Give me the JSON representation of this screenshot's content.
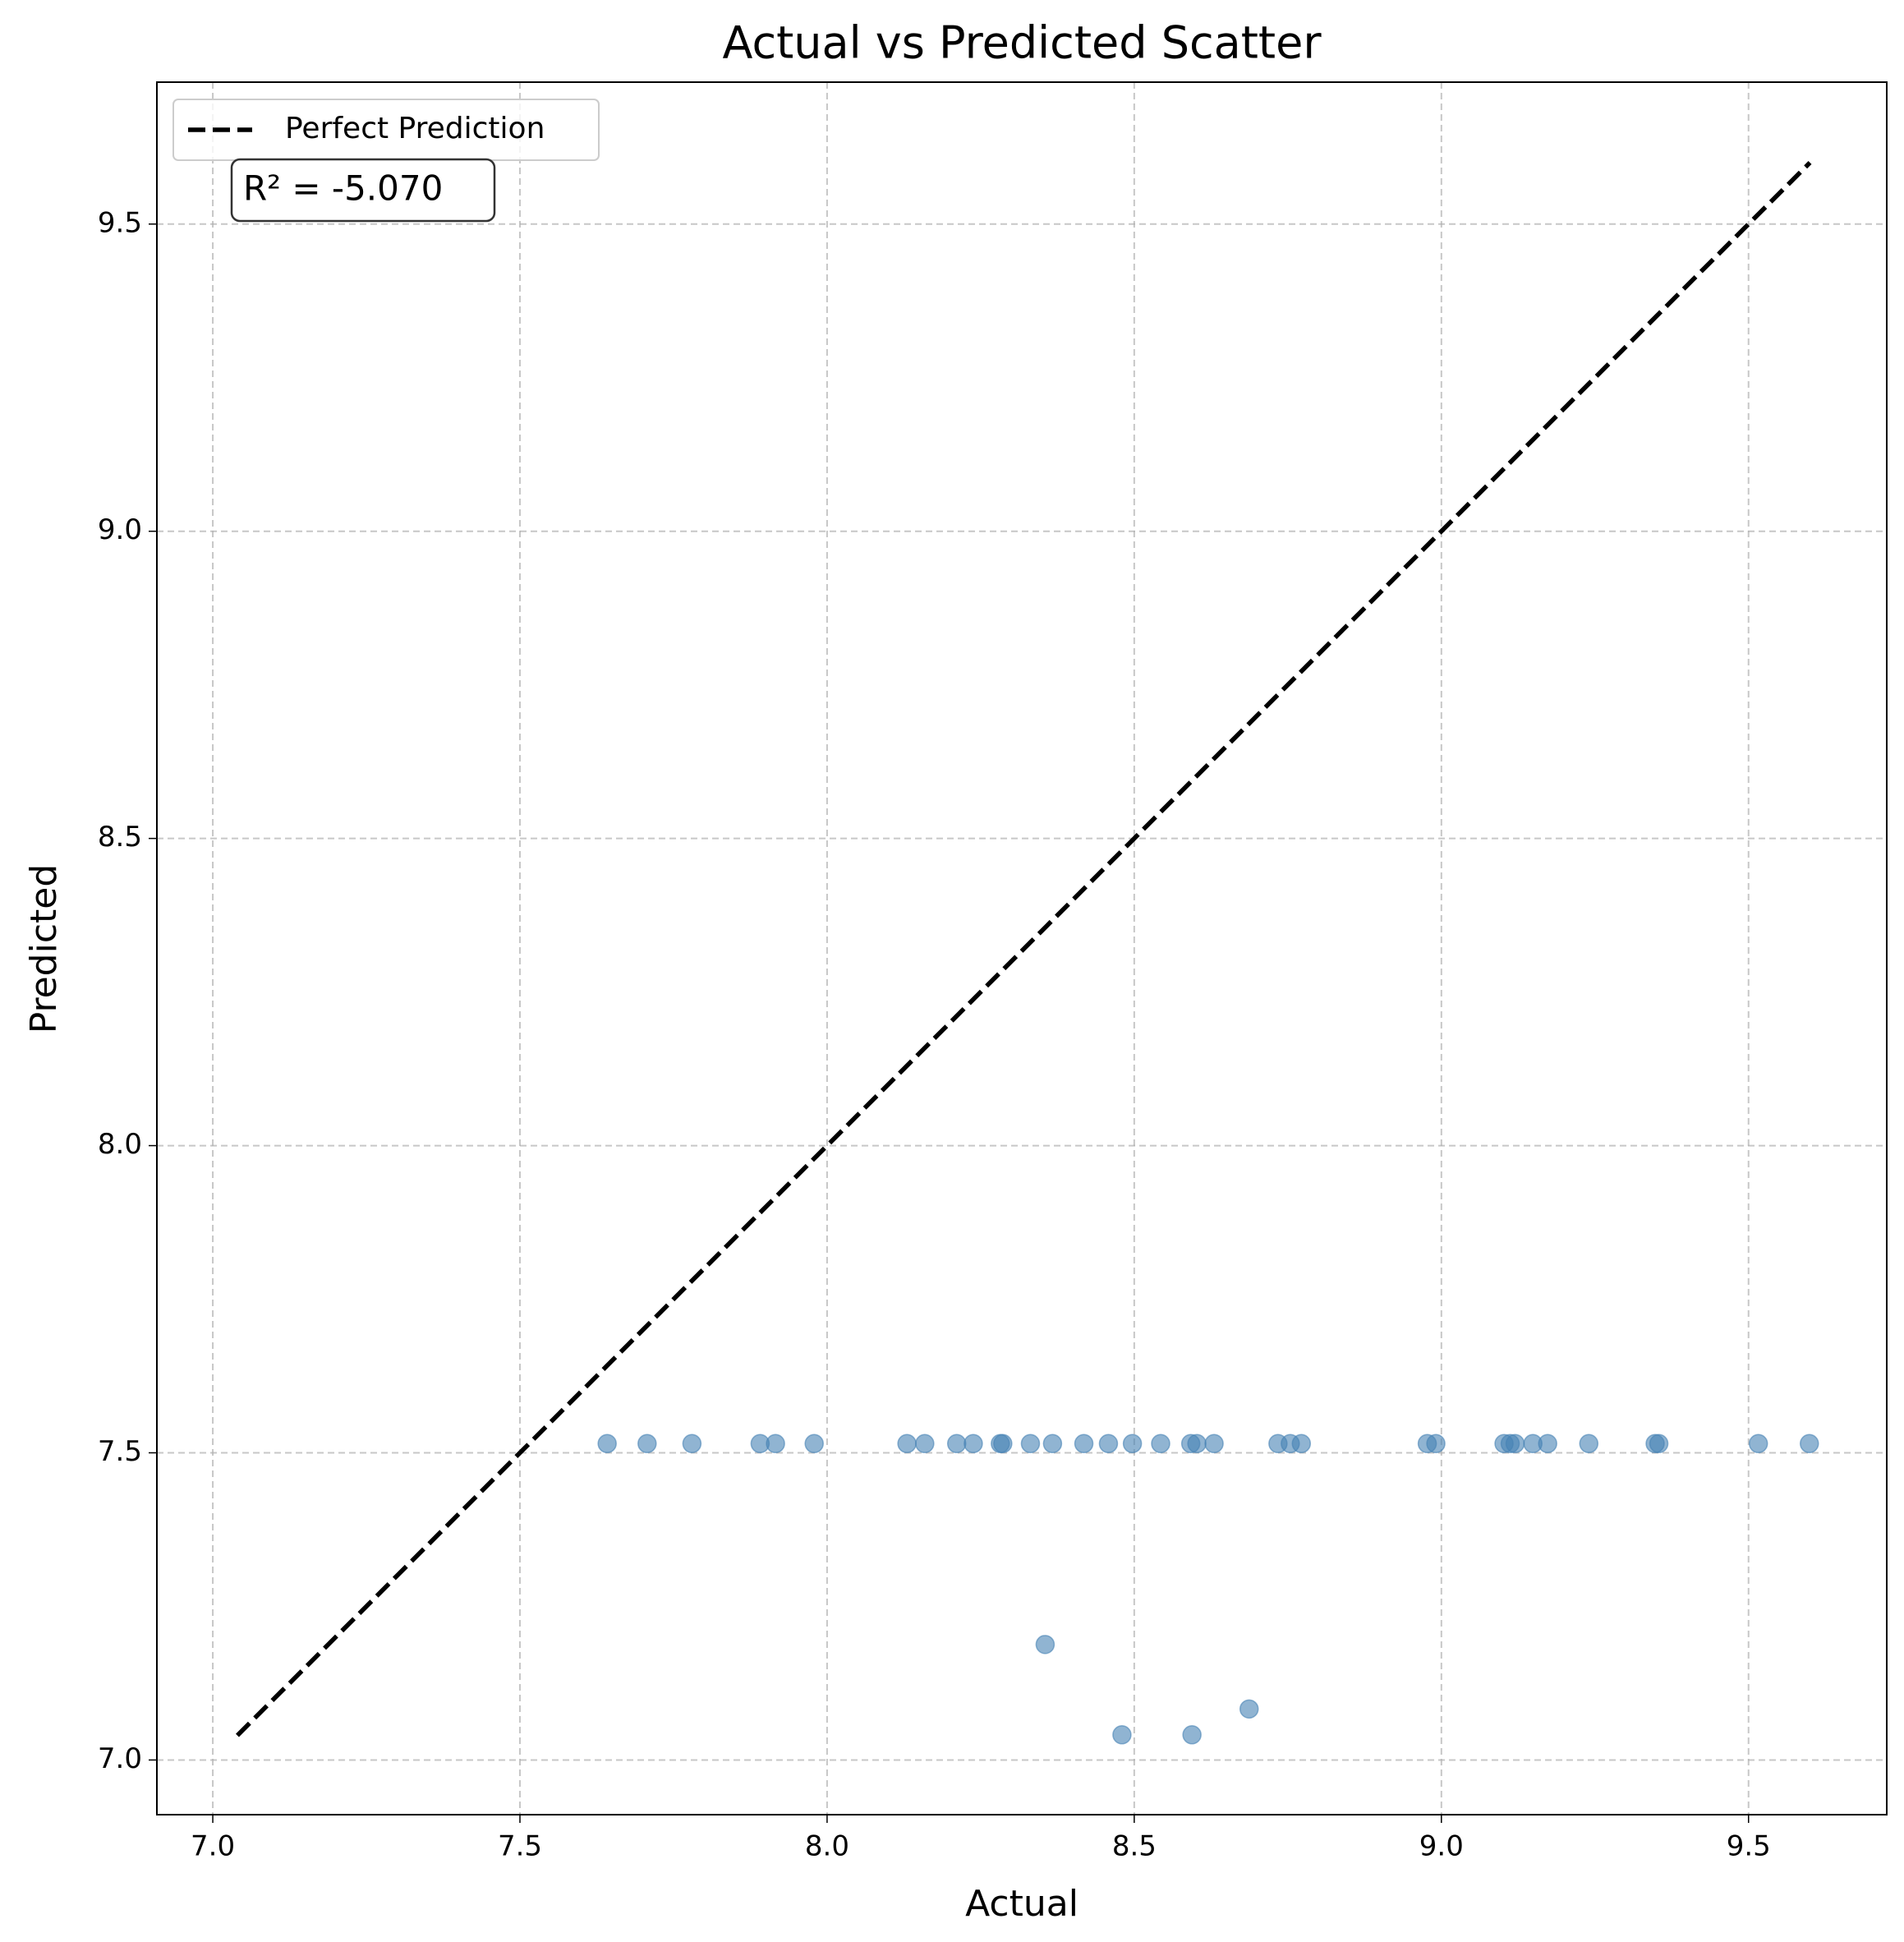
{
  "chart_data": {
    "type": "scatter",
    "title": "Actual vs Predicted Scatter",
    "x_label": "Actual",
    "y_label": "Predicted",
    "annotation": "R² = -5.070",
    "color": "#4682b4",
    "x": [
      7.642,
      7.707,
      7.78,
      7.891,
      7.916,
      7.979,
      8.13,
      8.159,
      8.211,
      8.238,
      8.282,
      8.286,
      8.331,
      8.367,
      8.418,
      8.458,
      8.497,
      8.543,
      8.592,
      8.602,
      8.63,
      8.734,
      8.754,
      8.772,
      8.977,
      8.991,
      9.102,
      9.112,
      9.12,
      9.149,
      9.173,
      9.24,
      9.348,
      9.354,
      9.516,
      9.599,
      8.355,
      8.48,
      8.594,
      8.687
    ],
    "values": [
      7.515,
      7.515,
      7.515,
      7.515,
      7.515,
      7.515,
      7.515,
      7.515,
      7.515,
      7.515,
      7.515,
      7.515,
      7.515,
      7.515,
      7.515,
      7.515,
      7.515,
      7.515,
      7.515,
      7.515,
      7.515,
      7.515,
      7.515,
      7.515,
      7.515,
      7.515,
      7.515,
      7.515,
      7.515,
      7.515,
      7.515,
      7.515,
      7.515,
      7.515,
      7.515,
      7.515,
      7.188,
      7.041,
      7.041,
      7.083
    ],
    "reference_line": {
      "name": "Perfect Prediction",
      "color": "#000000",
      "x": [
        7.04,
        9.6
      ],
      "values": [
        7.04,
        9.6
      ]
    },
    "xlim": [
      6.909,
      9.725
    ],
    "ylim": [
      6.911,
      9.731
    ],
    "xticks": [
      {
        "value": 7,
        "label": "7.0"
      },
      7.5,
      {
        "value": 8,
        "label": "8.0"
      },
      8.5,
      {
        "value": 9,
        "label": "9.0"
      },
      9.5
    ],
    "yticks": [
      {
        "value": 7,
        "label": "7.0"
      },
      7.5,
      {
        "value": 8,
        "label": "8.0"
      },
      8.5,
      {
        "value": 9,
        "label": "9.0"
      },
      9.5
    ],
    "grid": true,
    "legend": "upper left"
  }
}
